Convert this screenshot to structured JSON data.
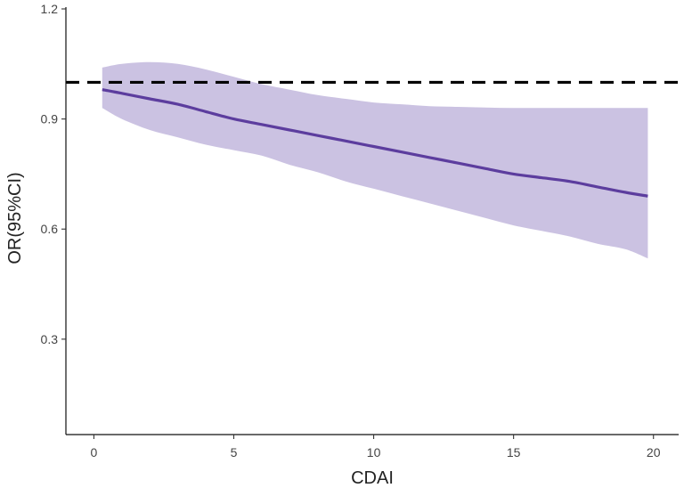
{
  "chart_data": {
    "type": "line",
    "xlabel": "CDAI",
    "ylabel": "OR(95%CI)",
    "xlim": [
      -1,
      20.9
    ],
    "ylim": [
      0.04,
      1.2
    ],
    "x_ticks": [
      0,
      5,
      10,
      15,
      20
    ],
    "x_tick_labels": [
      "0",
      "5",
      "10",
      "15",
      "20"
    ],
    "y_ticks": [
      0.3,
      0.6,
      0.9,
      1.2
    ],
    "y_tick_labels": [
      "0.3",
      "0.6",
      "0.9",
      "1.2"
    ],
    "reference_line": {
      "y": 1.0,
      "style": "dashed",
      "color": "#000000"
    },
    "grid": false,
    "series": [
      {
        "x": [
          0.3,
          1,
          2,
          3,
          4,
          5,
          6,
          7,
          8,
          9,
          10,
          11,
          12,
          13,
          14,
          15,
          16,
          17,
          18,
          19,
          19.8
        ],
        "y": [
          0.98,
          0.97,
          0.955,
          0.94,
          0.92,
          0.9,
          0.885,
          0.87,
          0.855,
          0.84,
          0.825,
          0.81,
          0.795,
          0.78,
          0.765,
          0.75,
          0.74,
          0.73,
          0.715,
          0.7,
          0.69
        ],
        "lower": [
          0.93,
          0.9,
          0.87,
          0.85,
          0.83,
          0.815,
          0.8,
          0.775,
          0.755,
          0.73,
          0.71,
          0.69,
          0.67,
          0.65,
          0.63,
          0.61,
          0.595,
          0.58,
          0.56,
          0.545,
          0.52
        ],
        "upper": [
          1.04,
          1.05,
          1.055,
          1.05,
          1.035,
          1.015,
          0.995,
          0.98,
          0.965,
          0.955,
          0.945,
          0.94,
          0.935,
          0.933,
          0.931,
          0.93,
          0.93,
          0.93,
          0.93,
          0.93,
          0.93
        ],
        "line_color": "#5c3d9e",
        "band_color": "#cbc2e2"
      }
    ]
  }
}
